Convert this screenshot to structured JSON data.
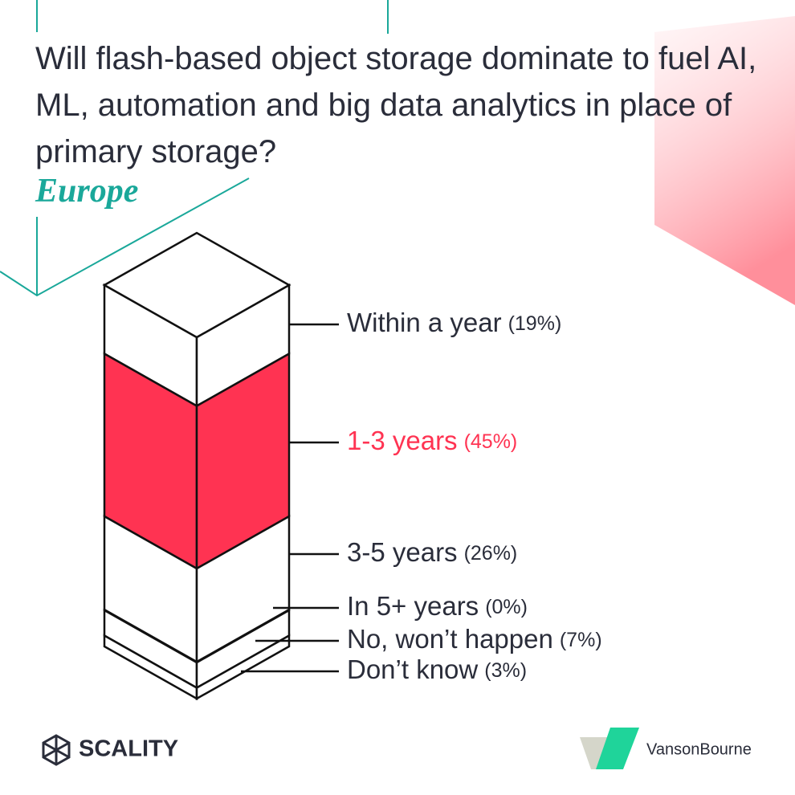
{
  "chart_data": {
    "type": "stacked-column",
    "title": "Will flash-based object storage dominate to fuel AI, ML, automation and big data analytics in place of primary storage?",
    "subtitle": "Europe",
    "categories": [
      "Within a year",
      "1-3 years",
      "3-5 years",
      "In 5+ years",
      "No, won’t happen",
      "Don’t know"
    ],
    "values": [
      19,
      45,
      26,
      0,
      7,
      3
    ],
    "value_labels": [
      "(19%)",
      "(45%)",
      "(26%)",
      "(0%)",
      "(7%)",
      "(3%)"
    ],
    "colors": [
      "#ffffff",
      "#ff3352",
      "#ffffff",
      "#ffffff",
      "#ffffff",
      "#ffffff"
    ],
    "brands": [
      "SCALITY",
      "VansonBourne"
    ]
  }
}
